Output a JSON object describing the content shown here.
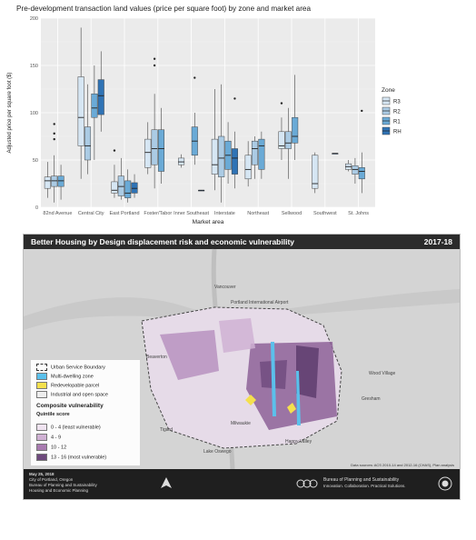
{
  "chart_data": {
    "type": "boxplot",
    "title": "Pre-development transaction land values (price per square foot) by zone and market area",
    "xlabel": "Market area",
    "ylabel": "Adjusted price per square foot ($)",
    "ylim": [
      0,
      200
    ],
    "yticks": [
      0,
      50,
      100,
      150,
      200
    ],
    "grid": true,
    "legend": {
      "title": "Zone",
      "position": "right",
      "entries": [
        "R3",
        "R2",
        "R1",
        "RH"
      ]
    },
    "colors": {
      "R3": "#d6e6f3",
      "R2": "#abcbe4",
      "R1": "#6aaad6",
      "RH": "#2f73b5"
    },
    "categories": [
      "82nd Avenue",
      "Central City",
      "East Portland",
      "Foster/Tabor",
      "Inner Southeast",
      "Interstate",
      "Northeast",
      "Sellwood",
      "Southwest",
      "St. Johns"
    ],
    "series": [
      {
        "name": "R3",
        "boxes": [
          {
            "cat": 0,
            "min": 10,
            "q1": 20,
            "med": 28,
            "q3": 32,
            "max": 48,
            "out": []
          },
          {
            "cat": 1,
            "min": 30,
            "q1": 65,
            "med": 95,
            "q3": 138,
            "max": 190,
            "out": []
          },
          {
            "cat": 2,
            "min": 10,
            "q1": 15,
            "med": 18,
            "q3": 27,
            "max": 45,
            "out": [
              60
            ]
          },
          {
            "cat": 3,
            "min": 35,
            "q1": 42,
            "med": 58,
            "q3": 72,
            "max": 90,
            "out": []
          },
          {
            "cat": 4,
            "min": 42,
            "q1": 45,
            "med": 48,
            "q3": 52,
            "max": 56,
            "out": []
          },
          {
            "cat": 5,
            "min": 18,
            "q1": 35,
            "med": 45,
            "q3": 72,
            "max": 125,
            "out": []
          },
          {
            "cat": 6,
            "min": 22,
            "q1": 30,
            "med": 40,
            "q3": 55,
            "max": 70,
            "out": []
          },
          {
            "cat": 7,
            "min": 50,
            "q1": 62,
            "med": 65,
            "q3": 80,
            "max": 95,
            "out": [
              110
            ]
          },
          {
            "cat": 8,
            "min": 15,
            "q1": 20,
            "med": 25,
            "q3": 55,
            "max": 58,
            "out": []
          },
          {
            "cat": 9,
            "min": 38,
            "q1": 40,
            "med": 43,
            "q3": 46,
            "max": 50,
            "out": []
          }
        ]
      },
      {
        "name": "R2",
        "boxes": [
          {
            "cat": 0,
            "min": 5,
            "q1": 22,
            "med": 28,
            "q3": 33,
            "max": 55,
            "out": [
              78,
              72,
              88
            ]
          },
          {
            "cat": 1,
            "min": 35,
            "q1": 50,
            "med": 65,
            "q3": 85,
            "max": 130,
            "out": []
          },
          {
            "cat": 2,
            "min": 8,
            "q1": 12,
            "med": 22,
            "q3": 33,
            "max": 52,
            "out": []
          },
          {
            "cat": 3,
            "min": 20,
            "q1": 45,
            "med": 62,
            "q3": 82,
            "max": 120,
            "out": [
              150,
              157
            ]
          },
          {
            "cat": 5,
            "min": 5,
            "q1": 32,
            "med": 52,
            "q3": 75,
            "max": 130,
            "out": []
          },
          {
            "cat": 6,
            "min": 30,
            "q1": 45,
            "med": 62,
            "q3": 70,
            "max": 75,
            "out": []
          },
          {
            "cat": 7,
            "min": 30,
            "q1": 62,
            "med": 68,
            "q3": 80,
            "max": 105,
            "out": []
          },
          {
            "cat": 9,
            "min": 25,
            "q1": 35,
            "med": 40,
            "q3": 44,
            "max": 52,
            "out": []
          }
        ]
      },
      {
        "name": "R1",
        "boxes": [
          {
            "cat": 0,
            "min": 8,
            "q1": 22,
            "med": 28,
            "q3": 33,
            "max": 45,
            "out": []
          },
          {
            "cat": 1,
            "min": 50,
            "q1": 95,
            "med": 105,
            "q3": 120,
            "max": 150,
            "out": []
          },
          {
            "cat": 2,
            "min": 5,
            "q1": 10,
            "med": 15,
            "q3": 28,
            "max": 40,
            "out": []
          },
          {
            "cat": 3,
            "min": 25,
            "q1": 38,
            "med": 62,
            "q3": 82,
            "max": 105,
            "out": []
          },
          {
            "cat": 4,
            "min": 45,
            "q1": 55,
            "med": 70,
            "q3": 85,
            "max": 100,
            "out": [
              137
            ]
          },
          {
            "cat": 5,
            "min": 25,
            "q1": 40,
            "med": 55,
            "q3": 70,
            "max": 90,
            "out": []
          },
          {
            "cat": 6,
            "min": 30,
            "q1": 40,
            "med": 65,
            "q3": 72,
            "max": 80,
            "out": []
          },
          {
            "cat": 7,
            "min": 50,
            "q1": 68,
            "med": 75,
            "q3": 95,
            "max": 140,
            "out": []
          },
          {
            "cat": 9,
            "min": 15,
            "q1": 30,
            "med": 38,
            "q3": 42,
            "max": 58,
            "out": [
              102
            ]
          }
        ]
      },
      {
        "name": "RH",
        "boxes": [
          {
            "cat": 1,
            "min": 80,
            "q1": 98,
            "med": 118,
            "q3": 135,
            "max": 165,
            "out": []
          },
          {
            "cat": 2,
            "min": 10,
            "q1": 15,
            "med": 20,
            "q3": 26,
            "max": 35,
            "out": []
          },
          {
            "cat": 4,
            "min": 18,
            "q1": 18,
            "med": 18,
            "q3": 18,
            "max": 18,
            "out": []
          },
          {
            "cat": 5,
            "min": 20,
            "q1": 35,
            "med": 52,
            "q3": 62,
            "max": 80,
            "out": [
              115
            ]
          },
          {
            "cat": 8,
            "min": 57,
            "q1": 57,
            "med": 57,
            "q3": 57,
            "max": 57,
            "out": []
          }
        ]
      }
    ]
  },
  "map": {
    "title": "Better Housing by Design displacement risk and economic vulnerability",
    "year": "2017-18",
    "legend": {
      "items": [
        {
          "label": "Urban Service Boundary",
          "color": "none"
        },
        {
          "label": "Multi-dwelling zone",
          "color": "#5bc0eb"
        },
        {
          "label": "Redevelopable parcel",
          "color": "#f4e04d"
        },
        {
          "label": "Industrial and open space",
          "color": "#eeeeee"
        }
      ],
      "vuln_title": "Composite vulnerability",
      "vuln_subtitle": "Quintile score",
      "scores": [
        {
          "label": "0 - 4 (least vulnerable)",
          "color": "#efe3f0"
        },
        {
          "label": "4 - 9",
          "color": "#cfb1d3"
        },
        {
          "label": "10 - 12",
          "color": "#a87bb0"
        },
        {
          "label": "13 - 16 (most vulnerable)",
          "color": "#6e4a7d"
        }
      ]
    },
    "labels": [
      "Vancouver",
      "Portland International Airport",
      "Gresham",
      "Milwaukie",
      "Happy Valley",
      "Lake Oswego",
      "Beaverton",
      "Tigard",
      "Wood Village"
    ],
    "footer": {
      "date": "May 25, 2018",
      "org1": "City of Portland, Oregon",
      "org2": "Bureau of Planning and Sustainability",
      "org3": "Housing and Economic Planning",
      "bps": "Bureau of Planning and Sustainability",
      "bps_sub": "Innovation. Collaboration. Practical Solutions.",
      "credit": "Data sources: ACS 2010-14 and 2012-16 (CHAS), Plan analysis"
    }
  }
}
